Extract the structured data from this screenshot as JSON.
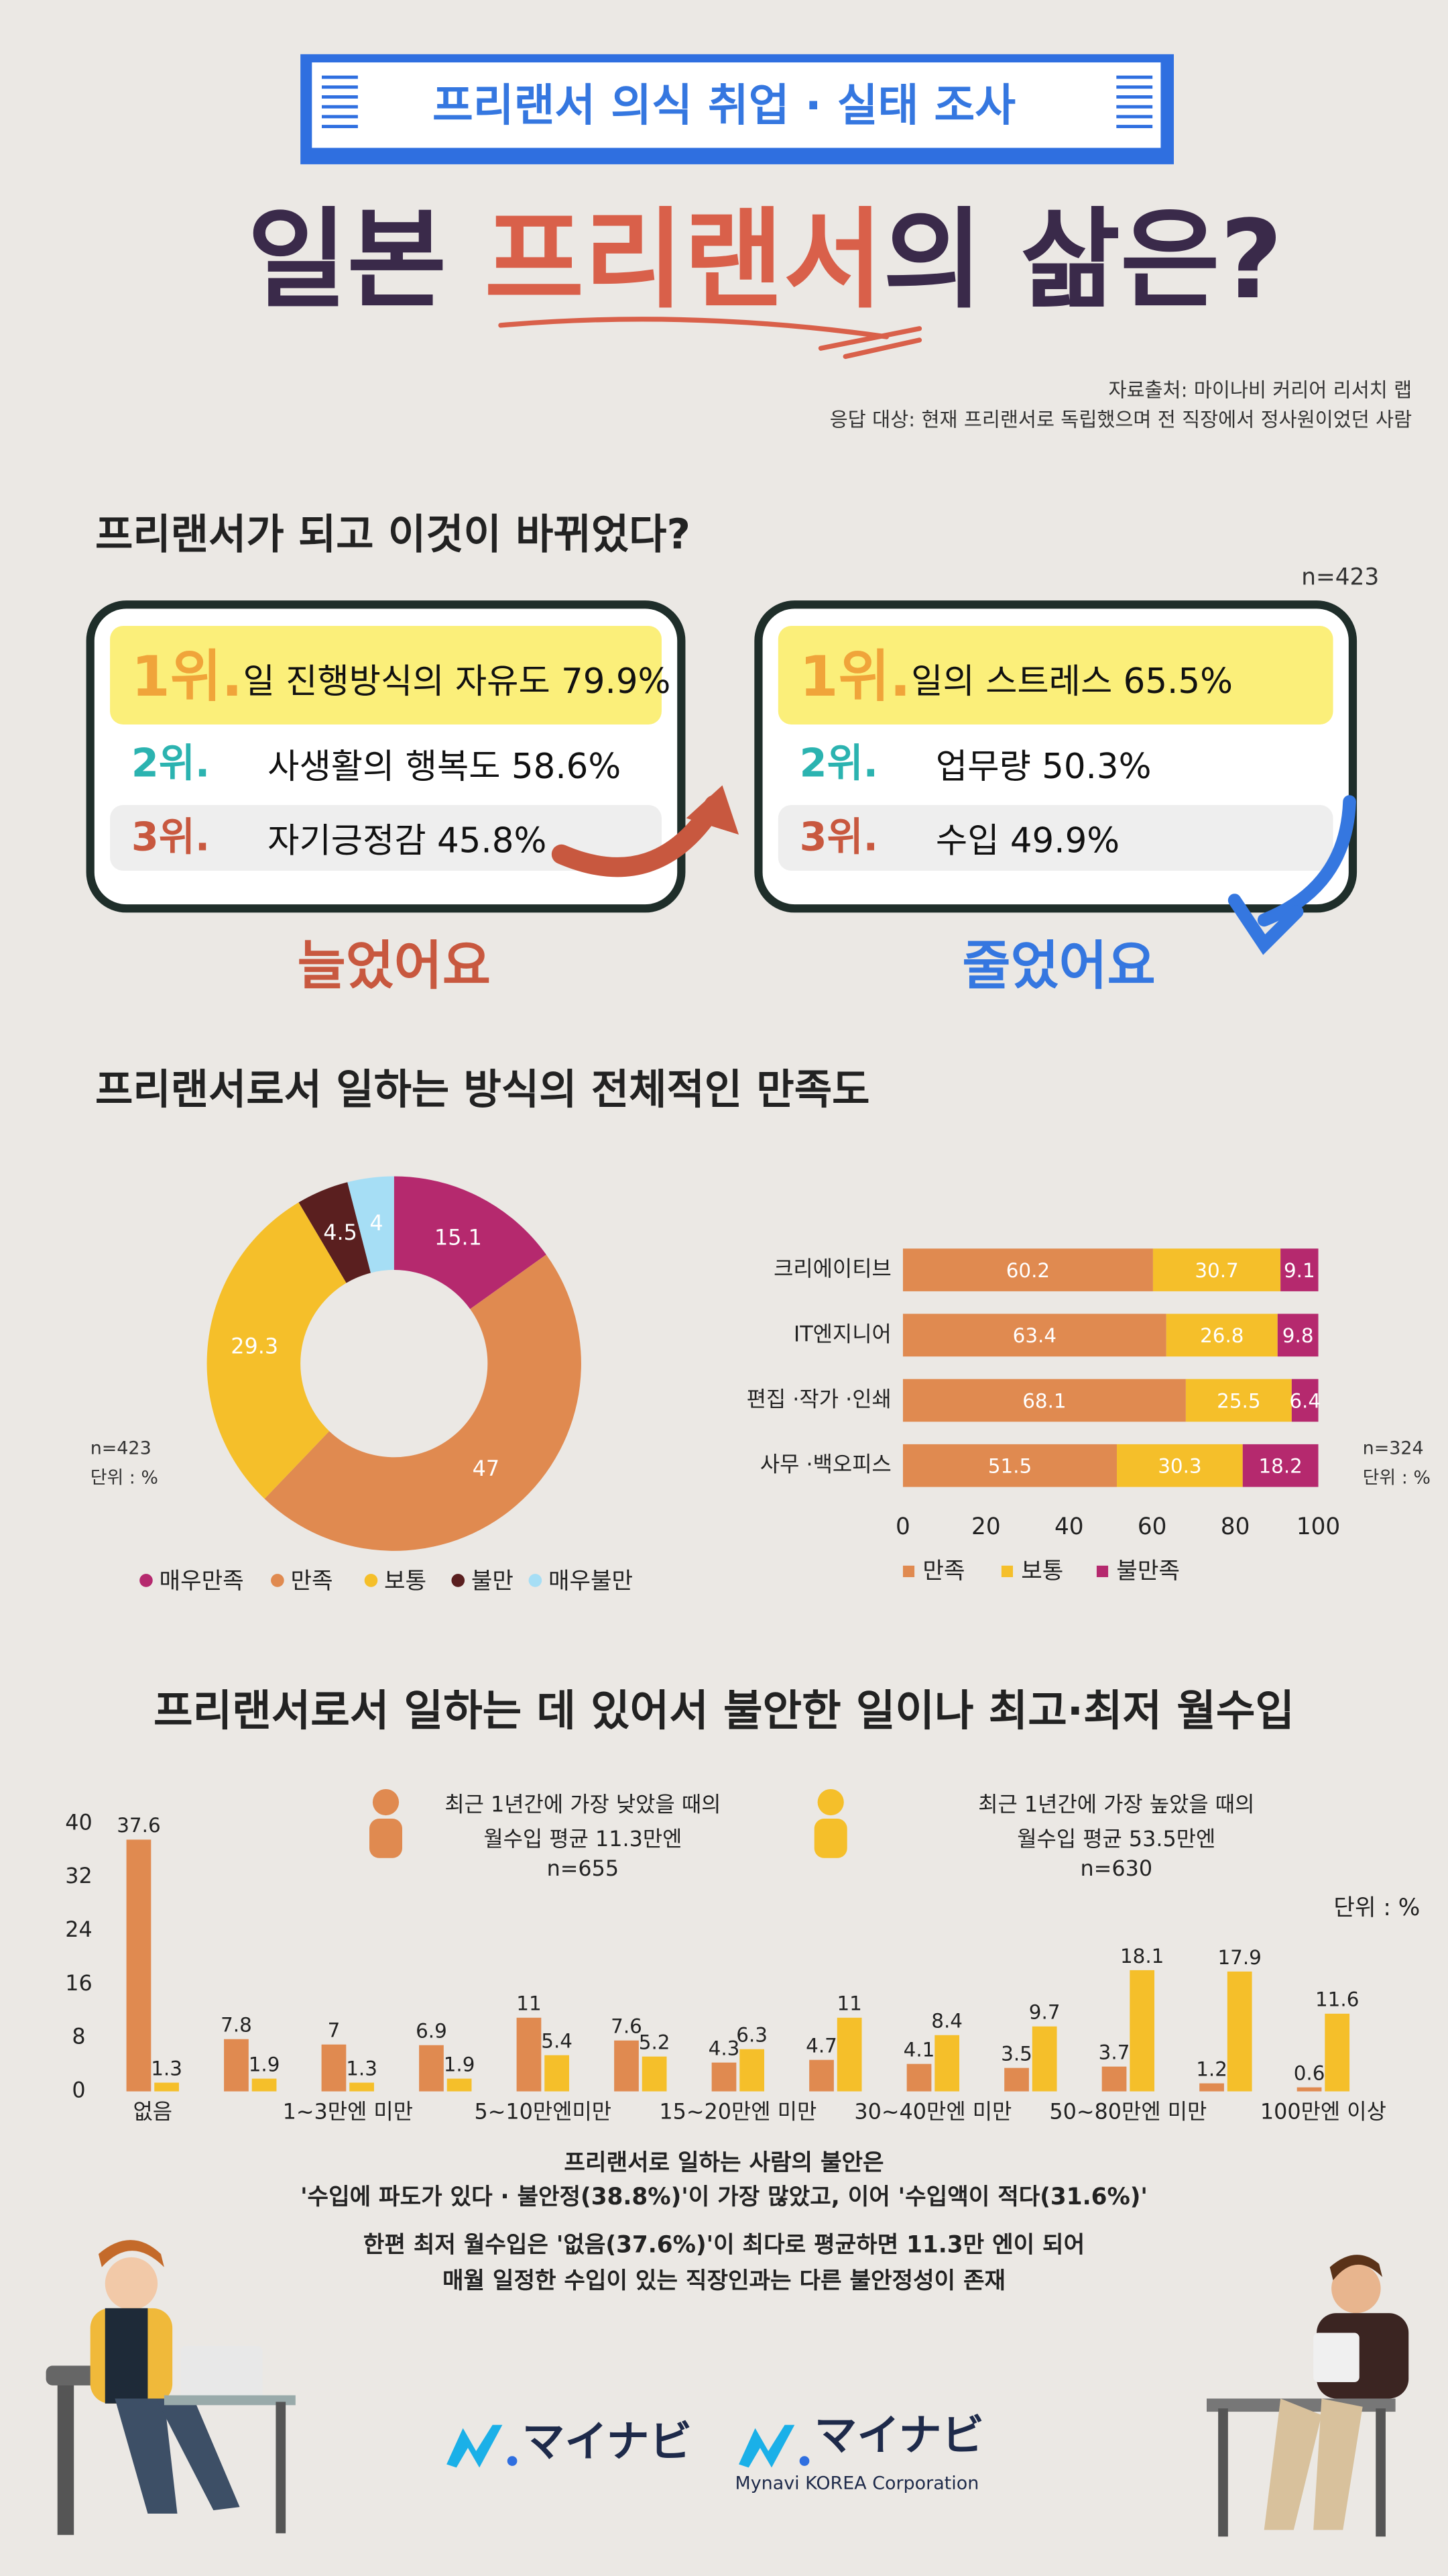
{
  "header": {
    "badge": "프리랜서 의식 취업 · 실태 조사",
    "title_parts": [
      "일본 ",
      "프리랜서",
      "의 삶은?"
    ],
    "source_lines": [
      "자료출처: 마이나비 커리어 리서치 랩",
      "응답 대상: 현재 프리랜서로 독립했으며 전 직장에서 정사원이었던 사람"
    ]
  },
  "changes": {
    "heading": "프리랜서가 되고 이것이 바뀌었다?",
    "n": "n=423",
    "increased": {
      "label": "늘었어요",
      "items": [
        {
          "rank": "1위.",
          "text": "일 진행방식의 자유도 79.9%"
        },
        {
          "rank": "2위.",
          "text": "사생활의 행복도 58.6%"
        },
        {
          "rank": "3위.",
          "text": "자기긍정감 45.8%"
        }
      ]
    },
    "decreased": {
      "label": "줄었어요",
      "items": [
        {
          "rank": "1위.",
          "text": "일의 스트레스 65.5%"
        },
        {
          "rank": "2위.",
          "text": "업무량 50.3%"
        },
        {
          "rank": "3위.",
          "text": "수입 49.9%"
        }
      ]
    }
  },
  "chart_data": [
    {
      "type": "pie",
      "donut": true,
      "title": "프리랜서로서 일하는 방식의 전체적인 만족도",
      "categories": [
        "매우만족",
        "만족",
        "보통",
        "불만",
        "매우불만"
      ],
      "values": [
        15.1,
        47,
        29.3,
        4.5,
        4
      ],
      "colors": [
        "#b5296e",
        "#e08a50",
        "#f5bf2a",
        "#5a1f1f",
        "#a6def5"
      ],
      "notes": [
        "n=423",
        "단위 : %"
      ]
    },
    {
      "type": "bar",
      "orientation": "horizontal",
      "stacked": true,
      "categories": [
        "크리에이티브",
        "IT엔지니어",
        "편집 ·작가 ·인쇄",
        "사무 ·백오피스"
      ],
      "series": [
        {
          "name": "만족",
          "color": "#e08a50",
          "values": [
            60.2,
            63.4,
            68.1,
            51.5
          ]
        },
        {
          "name": "보통",
          "color": "#f5bf2a",
          "values": [
            30.7,
            26.8,
            25.5,
            30.3
          ]
        },
        {
          "name": "불만족",
          "color": "#b5296e",
          "values": [
            9.1,
            9.8,
            6.4,
            18.2
          ]
        }
      ],
      "xlim": [
        0,
        100
      ],
      "xticks": [
        0,
        20,
        40,
        60,
        80,
        100
      ],
      "notes": [
        "n=324",
        "단위 : %"
      ]
    },
    {
      "type": "bar",
      "orientation": "vertical",
      "title": "프리랜서로서 일하는 데 있어서 불안한 일이나 최고·최저 월수입",
      "categories": [
        "없음",
        null,
        "1~3만엔 미만",
        null,
        "5~10만엔미만",
        null,
        "15~20만엔 미만",
        null,
        "30~40만엔 미만",
        null,
        "50~80만엔 미만",
        null,
        "100만엔 이상"
      ],
      "series": [
        {
          "name": "최근 1년간에 가장 낮았을 때의",
          "lines": [
            "월수입 평균 11.3만엔",
            "n=655"
          ],
          "color": "#e08a50",
          "values": [
            37.6,
            7.8,
            7,
            6.9,
            11,
            7.6,
            4.3,
            4.7,
            4.1,
            3.5,
            3.7,
            1.2,
            0.6
          ]
        },
        {
          "name": "최근 1년간에 가장 높았을 때의",
          "lines": [
            "월수입 평균 53.5만엔",
            "n=630"
          ],
          "color": "#f5bf2a",
          "values": [
            1.3,
            1.9,
            1.3,
            1.9,
            5.4,
            5.2,
            6.3,
            11,
            8.4,
            9.7,
            18.1,
            17.9,
            11.6
          ]
        }
      ],
      "ylim": [
        0,
        40
      ],
      "yticks": [
        0,
        8,
        16,
        24,
        32,
        40
      ],
      "unit": "단위 : %"
    }
  ],
  "summary": [
    "프리랜서로 일하는 사람의 불안은",
    "'수입에 파도가 있다 · 불안정(38.8%)'이 가장 많았고, 이어 '수입액이 적다(31.6%)'",
    "한편 최저 월수입은 '없음(37.6%)'이 최다로 평균하면 11.3만 엔이 되어",
    "매월 일정한 수입이 있는 직장인과는 다른 불안정성이 존재"
  ],
  "footer": {
    "logos": [
      "マイナビ",
      "マイナビ"
    ],
    "company": "Mynavi KOREA Corporation"
  }
}
